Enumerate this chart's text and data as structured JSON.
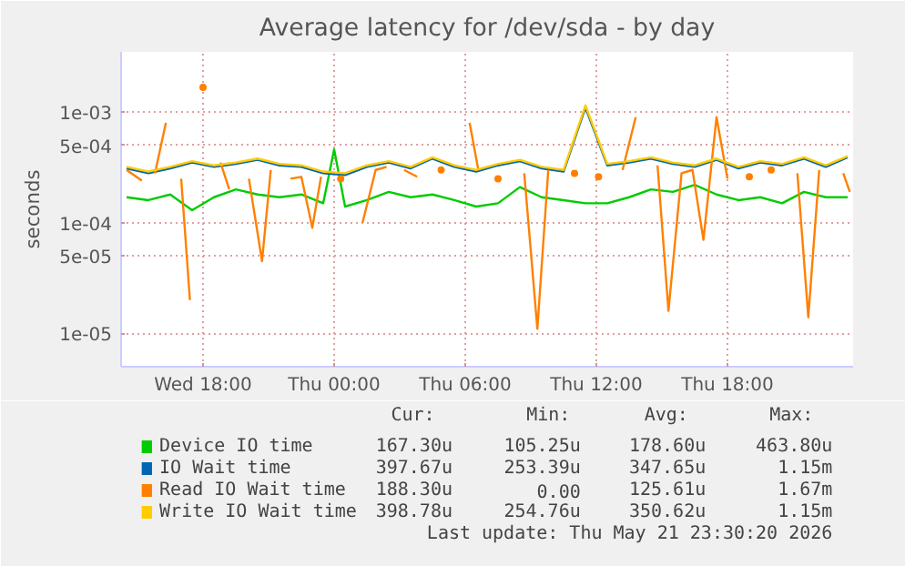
{
  "chart_data": {
    "type": "line",
    "title": "Average latency for /dev/sda - by day",
    "ylabel": "seconds",
    "log": "y",
    "grid": true,
    "legend": "bottom",
    "marker": "none",
    "line_style": "solid",
    "xlim": [
      "2026-05-20T14:15",
      "2026-05-21T23:45"
    ],
    "ylim": [
      5e-06,
      0.0035
    ],
    "xticks": [
      {
        "value": "2026-05-20T18:00",
        "label": "Wed 18:00"
      },
      {
        "value": "2026-05-21T00:00",
        "label": "Thu 00:00"
      },
      {
        "value": "2026-05-21T06:00",
        "label": "Thu 06:00"
      },
      {
        "value": "2026-05-21T12:00",
        "label": "Thu 12:00"
      },
      {
        "value": "2026-05-21T18:00",
        "label": "Thu 18:00"
      }
    ],
    "yticks": [
      {
        "value": 1e-05,
        "label": "1e-05"
      },
      {
        "value": 5e-05,
        "label": "5e-05"
      },
      {
        "value": 0.0001,
        "label": "1e-04"
      },
      {
        "value": 0.0005,
        "label": "5e-04"
      },
      {
        "value": 0.001,
        "label": "1e-03"
      }
    ],
    "x": [
      "2026-05-20T14:30",
      "2026-05-20T15:30",
      "2026-05-20T16:30",
      "2026-05-20T17:30",
      "2026-05-20T18:30",
      "2026-05-20T19:30",
      "2026-05-20T20:30",
      "2026-05-20T21:30",
      "2026-05-20T22:30",
      "2026-05-20T23:30",
      "2026-05-21T00:30",
      "2026-05-21T01:30",
      "2026-05-21T02:30",
      "2026-05-21T03:30",
      "2026-05-21T04:30",
      "2026-05-21T05:30",
      "2026-05-21T06:30",
      "2026-05-21T07:30",
      "2026-05-21T08:30",
      "2026-05-21T09:30",
      "2026-05-21T10:30",
      "2026-05-21T11:30",
      "2026-05-21T12:30",
      "2026-05-21T13:30",
      "2026-05-21T14:30",
      "2026-05-21T15:30",
      "2026-05-21T16:30",
      "2026-05-21T17:30",
      "2026-05-21T18:30",
      "2026-05-21T19:30",
      "2026-05-21T20:30",
      "2026-05-21T21:30",
      "2026-05-21T22:30",
      "2026-05-21T23:30"
    ],
    "series": [
      {
        "name": "Device IO time",
        "color": "#00cc00",
        "x": [
          "2026-05-20T14:30",
          "2026-05-20T15:30",
          "2026-05-20T16:30",
          "2026-05-20T17:30",
          "2026-05-20T18:30",
          "2026-05-20T19:30",
          "2026-05-20T20:30",
          "2026-05-20T21:30",
          "2026-05-20T22:30",
          "2026-05-20T23:30",
          "2026-05-21T00:00",
          "2026-05-21T00:30",
          "2026-05-21T01:30",
          "2026-05-21T02:30",
          "2026-05-21T03:30",
          "2026-05-21T04:30",
          "2026-05-21T05:30",
          "2026-05-21T06:30",
          "2026-05-21T07:30",
          "2026-05-21T08:30",
          "2026-05-21T09:30",
          "2026-05-21T10:30",
          "2026-05-21T11:30",
          "2026-05-21T12:30",
          "2026-05-21T13:30",
          "2026-05-21T14:30",
          "2026-05-21T15:30",
          "2026-05-21T16:30",
          "2026-05-21T17:30",
          "2026-05-21T18:30",
          "2026-05-21T19:30",
          "2026-05-21T20:30",
          "2026-05-21T21:30",
          "2026-05-21T22:30",
          "2026-05-21T23:30"
        ],
        "values": [
          0.00017,
          0.00016,
          0.00018,
          0.00013,
          0.00017,
          0.0002,
          0.00018,
          0.00017,
          0.00018,
          0.00015,
          0.00046,
          0.00014,
          0.00016,
          0.00019,
          0.00017,
          0.00018,
          0.00016,
          0.00014,
          0.00015,
          0.00021,
          0.00017,
          0.00016,
          0.00015,
          0.00015,
          0.00017,
          0.0002,
          0.00019,
          0.00022,
          0.00018,
          0.00016,
          0.00017,
          0.00015,
          0.00019,
          0.00017,
          0.00017
        ]
      },
      {
        "name": "IO Wait time",
        "color": "#0066b3",
        "values": [
          0.00031,
          0.00028,
          0.00031,
          0.00035,
          0.00032,
          0.00034,
          0.00037,
          0.00033,
          0.00032,
          0.00028,
          0.00027,
          0.00032,
          0.00035,
          0.00031,
          0.00038,
          0.00032,
          0.00029,
          0.00033,
          0.00036,
          0.00031,
          0.00029,
          0.0011,
          0.00033,
          0.00035,
          0.00038,
          0.00034,
          0.00032,
          0.00037,
          0.00031,
          0.00035,
          0.00033,
          0.00038,
          0.00032,
          0.00039
        ]
      },
      {
        "name": "Read IO Wait time",
        "color": "#ff8000",
        "x": [
          "2026-05-20T14:30",
          "2026-05-20T15:12",
          "2026-05-20T15:30",
          "2026-05-20T15:48",
          "2026-05-20T16:18",
          "2026-05-20T16:36",
          "2026-05-20T17:00",
          "2026-05-20T17:24",
          "2026-05-20T17:42",
          "2026-05-20T18:00",
          "2026-05-20T18:18",
          "2026-05-20T18:48",
          "2026-05-20T19:12",
          "2026-05-20T19:36",
          "2026-05-20T20:06",
          "2026-05-20T20:42",
          "2026-05-20T21:06",
          "2026-05-20T21:30",
          "2026-05-20T22:00",
          "2026-05-20T22:30",
          "2026-05-20T23:00",
          "2026-05-20T23:24",
          "2026-05-20T23:54",
          "2026-05-21T00:18",
          "2026-05-21T00:48",
          "2026-05-21T01:18",
          "2026-05-21T01:54",
          "2026-05-21T02:24",
          "2026-05-21T02:48",
          "2026-05-21T03:12",
          "2026-05-21T03:48",
          "2026-05-21T04:24",
          "2026-05-21T04:54",
          "2026-05-21T05:30",
          "2026-05-21T06:12",
          "2026-05-21T06:36",
          "2026-05-21T07:00",
          "2026-05-21T07:30",
          "2026-05-21T08:12",
          "2026-05-21T08:42",
          "2026-05-21T09:18",
          "2026-05-21T09:48",
          "2026-05-21T10:24",
          "2026-05-21T11:00",
          "2026-05-21T11:36",
          "2026-05-21T12:06",
          "2026-05-21T12:36",
          "2026-05-21T13:12",
          "2026-05-21T13:48",
          "2026-05-21T14:18",
          "2026-05-21T14:48",
          "2026-05-21T15:18",
          "2026-05-21T15:54",
          "2026-05-21T16:24",
          "2026-05-21T16:54",
          "2026-05-21T17:30",
          "2026-05-21T18:00",
          "2026-05-21T18:30",
          "2026-05-21T19:00",
          "2026-05-21T19:30",
          "2026-05-21T20:00",
          "2026-05-21T20:36",
          "2026-05-21T21:12",
          "2026-05-21T21:42",
          "2026-05-21T22:12",
          "2026-05-21T22:42",
          "2026-05-21T23:18",
          "2026-05-21T23:36"
        ],
        "values": [
          0.0003,
          0.00024,
          null,
          0.00028,
          0.0008,
          null,
          0.00025,
          2e-05,
          null,
          0.00167,
          null,
          0.00035,
          0.0002,
          null,
          0.00025,
          4.5e-05,
          0.0003,
          null,
          0.00025,
          0.00026,
          9e-05,
          0.00026,
          null,
          0.00025,
          null,
          0.0001,
          0.0003,
          0.00032,
          null,
          0.0003,
          0.00026,
          null,
          0.0003,
          null,
          0.0008,
          0.0003,
          null,
          0.00025,
          null,
          0.00028,
          1.1e-05,
          0.0003,
          null,
          0.00028,
          null,
          0.00026,
          null,
          0.0003,
          0.0009,
          null,
          0.00033,
          1.6e-05,
          0.00028,
          0.0003,
          7e-05,
          0.0009,
          0.00025,
          null,
          0.00026,
          null,
          0.0003,
          null,
          0.00028,
          1.4e-05,
          0.0003,
          null,
          0.00028,
          0.00019
        ]
      },
      {
        "name": "Write IO Wait time",
        "color": "#ffcc00",
        "values": [
          0.00032,
          0.00029,
          0.00032,
          0.00036,
          0.00033,
          0.00035,
          0.00038,
          0.00034,
          0.00033,
          0.00029,
          0.00028,
          0.00033,
          0.00036,
          0.00032,
          0.00039,
          0.00033,
          0.0003,
          0.00034,
          0.00037,
          0.00032,
          0.0003,
          0.00115,
          0.00034,
          0.00036,
          0.00039,
          0.00035,
          0.00033,
          0.00038,
          0.00032,
          0.00036,
          0.00034,
          0.00039,
          0.00033,
          0.0004
        ]
      }
    ],
    "annotations": [
      "Cur:",
      "Min:",
      "Avg:",
      "Max:",
      "167.30u",
      "105.25u",
      "178.60u",
      "463.80u",
      "397.67u",
      "253.39u",
      "347.65u",
      "1.15m",
      "188.30u",
      "0.00",
      "125.61u",
      "1.67m",
      "398.78u",
      "254.76u",
      "350.62u",
      "1.15m",
      "Last update: Thu May 21 23:30:20 2026"
    ]
  }
}
